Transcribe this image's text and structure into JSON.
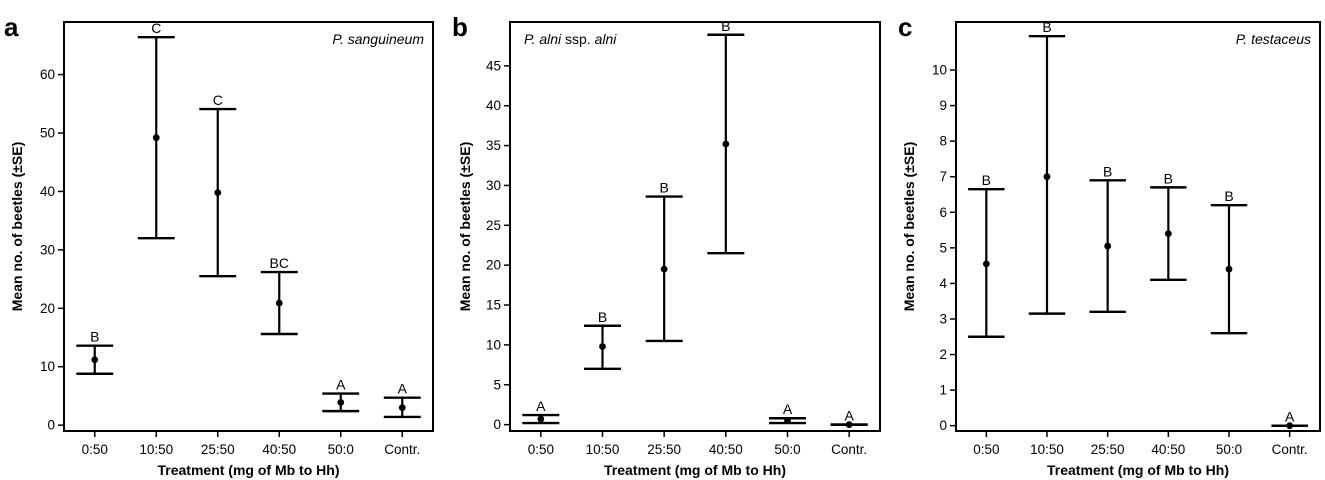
{
  "chart_data": [
    {
      "type": "errorbar",
      "panel_letter": "a",
      "species_italic": "P. sanguineum",
      "species_roman": "",
      "xlabel": "Treatment (mg of Mb to Hh)",
      "ylabel": "Mean no. of beetles (±SE)",
      "categories": [
        "0:50",
        "10:50",
        "25:50",
        "40:50",
        "50:0",
        "Contr."
      ],
      "mean": [
        11.2,
        49.2,
        39.8,
        20.9,
        3.9,
        3.0
      ],
      "lower": [
        8.8,
        32.0,
        25.5,
        15.6,
        2.4,
        1.4
      ],
      "upper": [
        13.6,
        66.4,
        54.1,
        26.2,
        5.4,
        4.7
      ],
      "letters": [
        "B",
        "C",
        "C",
        "BC",
        "A",
        "A"
      ],
      "ylim": [
        -1,
        69
      ],
      "yticks": [
        0,
        10,
        20,
        30,
        40,
        50,
        60
      ]
    },
    {
      "type": "errorbar",
      "panel_letter": "b",
      "species_italic": "P. alni",
      "species_roman": " ssp. ",
      "species_italic2": "alni",
      "xlabel": "Treatment (mg of Mb to Hh)",
      "ylabel": "Mean no. of beetles (±SE)",
      "categories": [
        "0:50",
        "10:50",
        "25:50",
        "40:50",
        "50:0",
        "Contr."
      ],
      "mean": [
        0.7,
        9.8,
        19.5,
        35.2,
        0.5,
        0.0
      ],
      "lower": [
        0.2,
        7.0,
        10.5,
        21.5,
        0.2,
        0.0
      ],
      "upper": [
        1.2,
        12.4,
        28.6,
        48.9,
        0.8,
        0.0
      ],
      "letters": [
        "A",
        "B",
        "B",
        "B",
        "A",
        "A"
      ],
      "ylim": [
        -0.8,
        50.5
      ],
      "yticks": [
        0,
        5,
        10,
        15,
        20,
        25,
        30,
        35,
        40,
        45
      ]
    },
    {
      "type": "errorbar",
      "panel_letter": "c",
      "species_italic": "P. testaceus",
      "species_roman": "",
      "xlabel": "Treatment (mg of Mb to Hh)",
      "ylabel": "Mean no. of beetles (±SE)",
      "categories": [
        "0:50",
        "10:50",
        "25:50",
        "40:50",
        "50:0",
        "Contr."
      ],
      "mean": [
        4.55,
        7.0,
        5.05,
        5.4,
        4.4,
        0.0
      ],
      "lower": [
        2.5,
        3.15,
        3.2,
        4.1,
        2.6,
        0.0
      ],
      "upper": [
        6.65,
        10.95,
        6.9,
        6.7,
        6.2,
        0.0
      ],
      "letters": [
        "B",
        "B",
        "B",
        "B",
        "B",
        "A"
      ],
      "ylim": [
        -0.15,
        11.35
      ],
      "yticks": [
        0,
        1,
        2,
        3,
        4,
        5,
        6,
        7,
        8,
        9,
        10
      ]
    }
  ]
}
